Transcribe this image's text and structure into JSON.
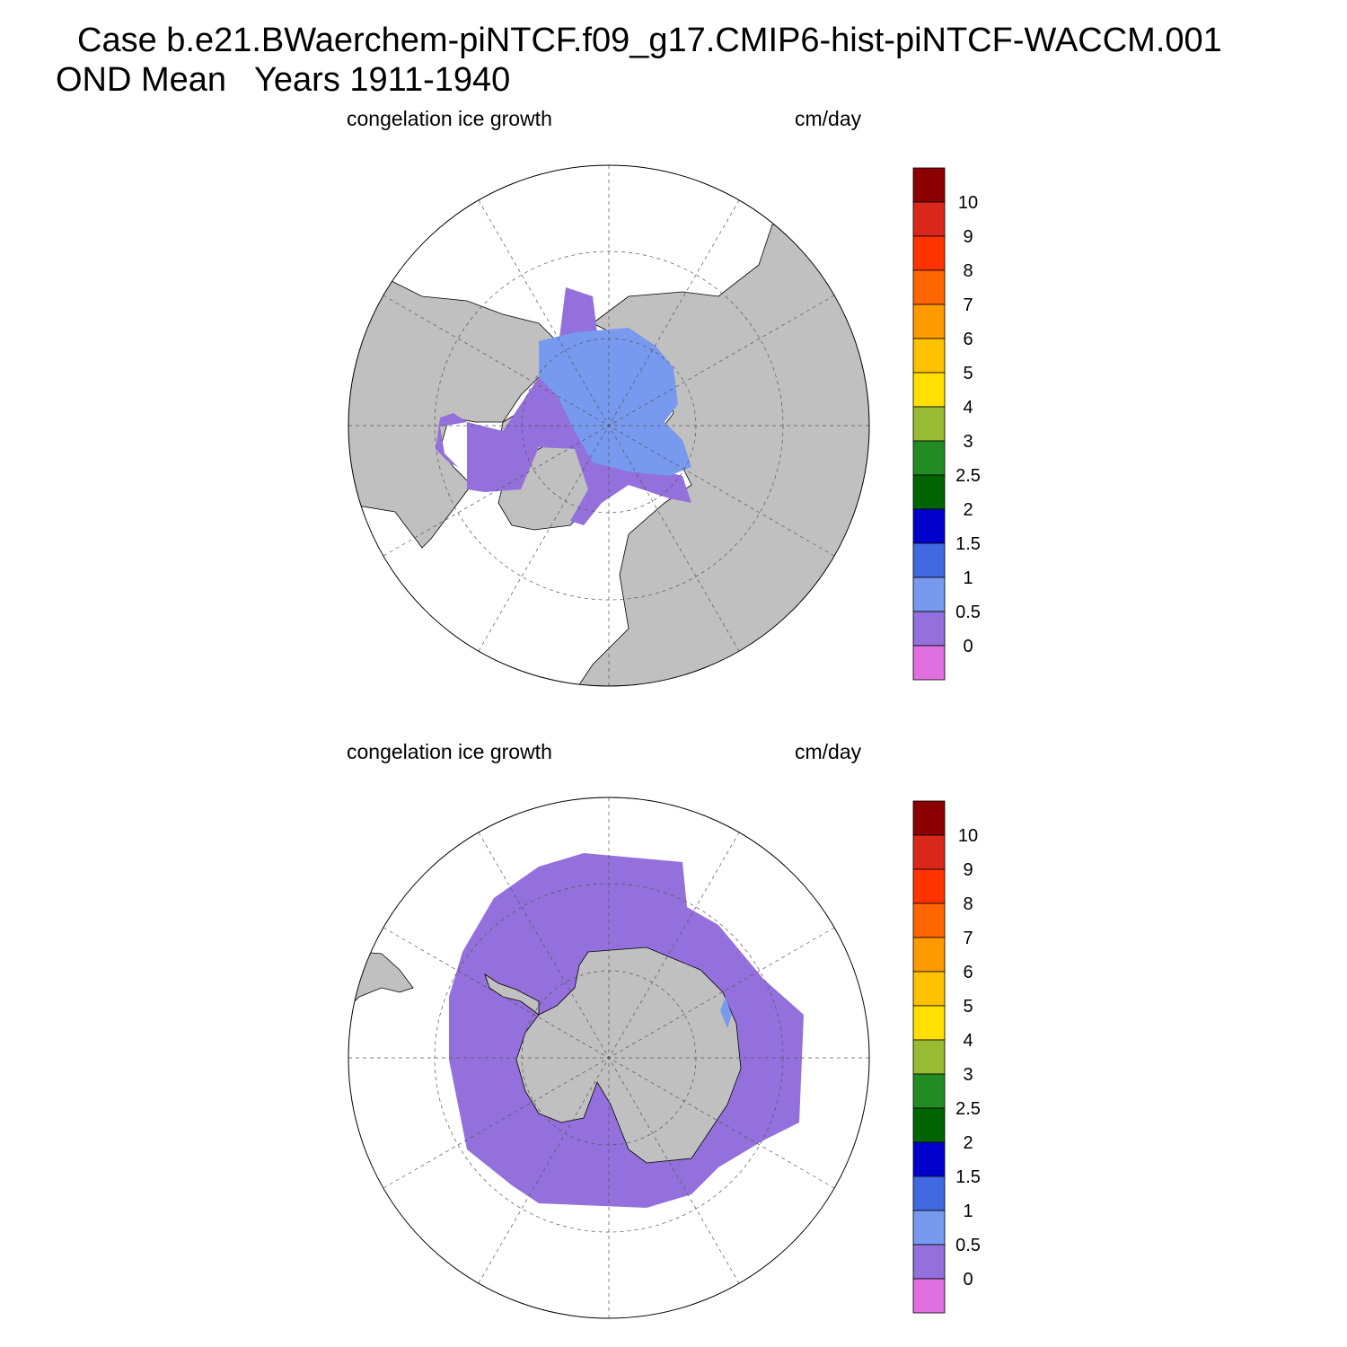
{
  "title": {
    "case_line": "Case b.e21.BWaerchem-piNTCF.f09_g17.CMIP6-hist-piNTCF-WACCM.001",
    "period_line": "OND Mean   Years 1911-1940"
  },
  "panels": [
    {
      "id": "north",
      "variable": "congelation ice growth",
      "units": "cm/day"
    },
    {
      "id": "south",
      "variable": "congelation ice growth",
      "units": "cm/day"
    }
  ],
  "colorbar": {
    "labels": [
      "10",
      "9",
      "8",
      "7",
      "6",
      "5",
      "4",
      "3",
      "2.5",
      "2",
      "1.5",
      "1",
      "0.5",
      "0"
    ],
    "colors": [
      "#8b0000",
      "#d9271c",
      "#ff3300",
      "#ff6600",
      "#ff9900",
      "#ffc000",
      "#ffe000",
      "#99bb33",
      "#228b22",
      "#006400",
      "#0000cd",
      "#4169e1",
      "#7799ee",
      "#9370db",
      "#e070e0"
    ]
  },
  "map_colors": {
    "land": "#c0c0c0",
    "ocean": "#ffffff",
    "ice_low": "#9370db",
    "ice_mid": "#7799ee",
    "ice_high": "#4169e1"
  }
}
